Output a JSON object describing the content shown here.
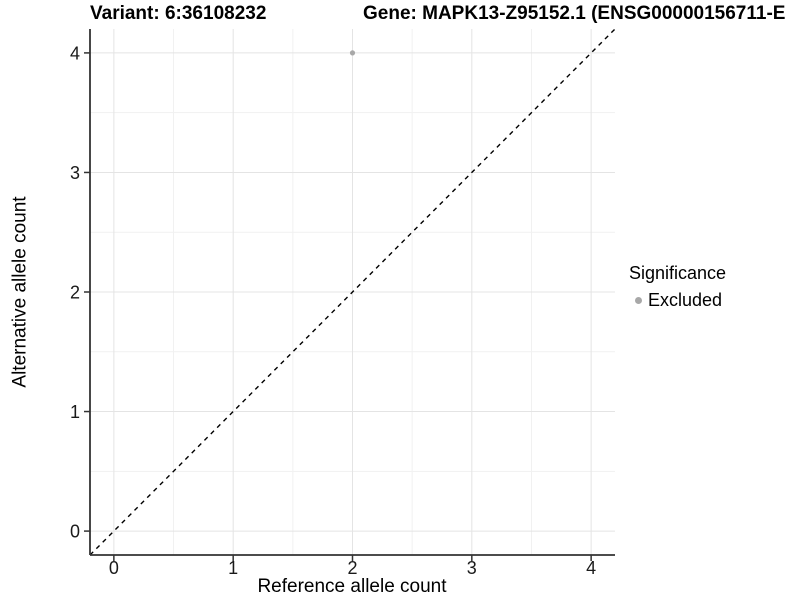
{
  "titles": {
    "variant": "Variant: 6:36108232",
    "gene": "Gene: MAPK13-Z95152.1 (ENSG00000156711-E"
  },
  "chart_data": {
    "type": "scatter",
    "xlabel": "Reference allele count",
    "ylabel": "Alternative allele count",
    "xlim": [
      -0.2,
      4.2
    ],
    "ylim": [
      -0.2,
      4.2
    ],
    "xticks": [
      0,
      1,
      2,
      3,
      4
    ],
    "yticks": [
      0,
      1,
      2,
      3,
      4
    ],
    "grid": "major+minor",
    "points": [
      {
        "x": 2,
        "y": 4,
        "series": "Excluded"
      }
    ],
    "reference_line": {
      "type": "identity",
      "from": [
        -0.2,
        -0.2
      ],
      "to": [
        4.2,
        4.2
      ],
      "style": "dashed",
      "color": "#000000"
    },
    "legend": {
      "position": "right",
      "title": "Significance",
      "items": [
        {
          "label": "Excluded",
          "color": "#a8a8a8"
        }
      ]
    },
    "colors": {
      "point": "#a8a8a8",
      "grid_major": "#e4e4e4",
      "grid_minor": "#f1f1f1",
      "axis_line": "#333333",
      "tick_mark": "#333333",
      "tick_text": "#1a1a1a",
      "background": "#ffffff"
    }
  }
}
